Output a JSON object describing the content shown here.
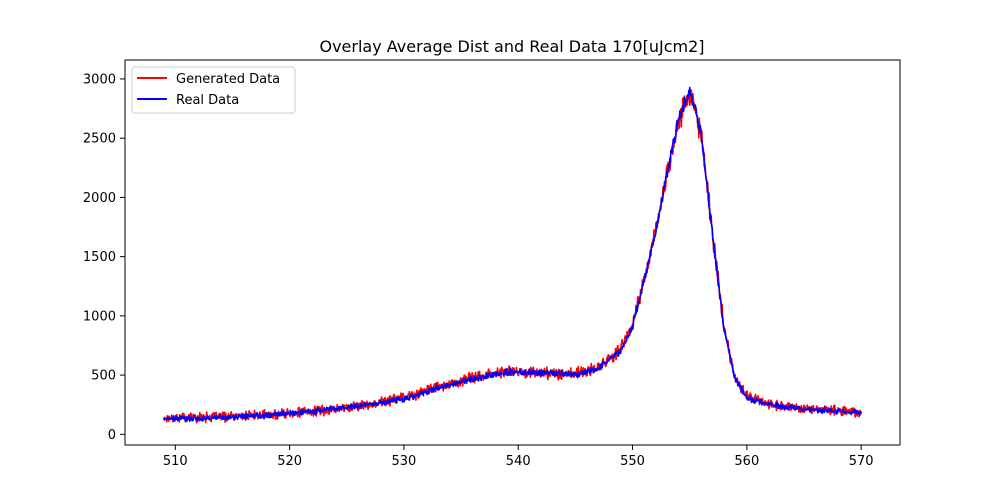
{
  "chart_data": {
    "type": "line",
    "title": "Overlay Average Dist and Real Data 170[uJcm2]",
    "xlabel": "",
    "ylabel": "",
    "xlim": [
      505.6,
      573.4
    ],
    "ylim": [
      -90,
      3160
    ],
    "xticks": [
      510,
      520,
      530,
      540,
      550,
      560,
      570
    ],
    "yticks": [
      0,
      500,
      1000,
      1500,
      2000,
      2500,
      3000
    ],
    "grid": false,
    "legend_position": "top-left",
    "series": [
      {
        "name": "Generated Data",
        "color": "#ff0000",
        "noise_amplitude": 45,
        "points": [
          [
            509,
            140
          ],
          [
            512,
            145
          ],
          [
            515,
            150
          ],
          [
            518,
            165
          ],
          [
            521,
            185
          ],
          [
            524,
            215
          ],
          [
            527,
            255
          ],
          [
            530,
            310
          ],
          [
            533,
            400
          ],
          [
            536,
            480
          ],
          [
            539,
            530
          ],
          [
            542,
            520
          ],
          [
            545,
            510
          ],
          [
            547,
            560
          ],
          [
            549,
            720
          ],
          [
            550,
            920
          ],
          [
            551,
            1300
          ],
          [
            552,
            1700
          ],
          [
            553,
            2200
          ],
          [
            554,
            2650
          ],
          [
            555,
            2880
          ],
          [
            556,
            2550
          ],
          [
            557,
            1700
          ],
          [
            558,
            900
          ],
          [
            559,
            470
          ],
          [
            560,
            320
          ],
          [
            562,
            260
          ],
          [
            565,
            220
          ],
          [
            568,
            200
          ],
          [
            570,
            185
          ]
        ]
      },
      {
        "name": "Real Data",
        "color": "#0000ff",
        "noise_amplitude": 25,
        "points": [
          [
            509,
            130
          ],
          [
            512,
            135
          ],
          [
            515,
            145
          ],
          [
            518,
            165
          ],
          [
            521,
            185
          ],
          [
            524,
            215
          ],
          [
            527,
            255
          ],
          [
            530,
            300
          ],
          [
            533,
            390
          ],
          [
            536,
            470
          ],
          [
            539,
            525
          ],
          [
            542,
            520
          ],
          [
            545,
            505
          ],
          [
            547,
            555
          ],
          [
            549,
            710
          ],
          [
            550,
            910
          ],
          [
            551,
            1290
          ],
          [
            552,
            1690
          ],
          [
            553,
            2190
          ],
          [
            554,
            2640
          ],
          [
            555,
            2900
          ],
          [
            556,
            2540
          ],
          [
            557,
            1690
          ],
          [
            558,
            890
          ],
          [
            559,
            460
          ],
          [
            560,
            310
          ],
          [
            562,
            250
          ],
          [
            565,
            210
          ],
          [
            568,
            195
          ],
          [
            570,
            180
          ]
        ]
      }
    ]
  }
}
